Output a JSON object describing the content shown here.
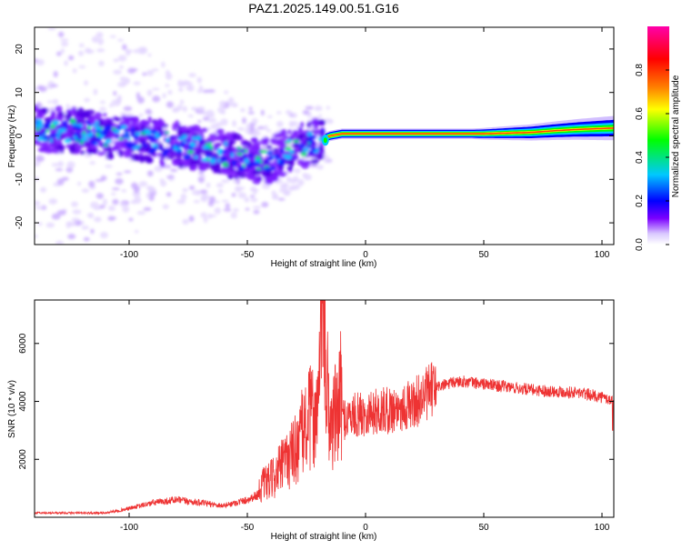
{
  "title": "PAZ1.2025.149.00.51.G16",
  "chart_data": [
    {
      "type": "heatmap",
      "xlabel": "Height of straight line (km)",
      "ylabel": "Frequency (Hz)",
      "xlim": [
        -140,
        105
      ],
      "ylim": [
        -25,
        25
      ],
      "xticks": [
        -100,
        -50,
        0,
        50,
        100
      ],
      "yticks": [
        -20,
        -10,
        0,
        10,
        20
      ],
      "ridge": {
        "x": [
          -138,
          -120,
          -100,
          -80,
          -60,
          -50,
          -40,
          -30,
          -20,
          -15,
          -10,
          0,
          10,
          30,
          50,
          70,
          80,
          90,
          105
        ],
        "y": [
          1.5,
          1.0,
          -0.5,
          -2.0,
          -4.0,
          -6.0,
          -5.5,
          -3.0,
          -1.0,
          0,
          0.5,
          0.5,
          0.5,
          0.5,
          0.5,
          0.8,
          1.2,
          1.5,
          1.8
        ]
      },
      "colorbar": {
        "label": "Normalized spectral amplitude",
        "ticks": [
          0.0,
          0.2,
          0.4,
          0.6,
          0.8
        ],
        "range": [
          0,
          1
        ],
        "colors": [
          "#ffffff",
          "#d9c8ff",
          "#7b00ff",
          "#0000ff",
          "#00c8ff",
          "#00ff00",
          "#ffff00",
          "#ff8000",
          "#ff0000",
          "#ff00aa"
        ]
      }
    },
    {
      "type": "line",
      "xlabel": "Height of straight line (km)",
      "ylabel": "SNR (10 * v/v)",
      "xlim": [
        -140,
        105
      ],
      "ylim": [
        0,
        7500
      ],
      "xticks": [
        -100,
        -50,
        0,
        50,
        100
      ],
      "yticks": [
        2000,
        4000,
        6000
      ],
      "color": "#ee3333",
      "envelope": {
        "x": [
          -140,
          -110,
          -100,
          -90,
          -80,
          -70,
          -60,
          -50,
          -40,
          -30,
          -25,
          -20,
          -18,
          -15,
          -12,
          -10,
          -5,
          0,
          10,
          20,
          30,
          40,
          50,
          60,
          70,
          80,
          90,
          100,
          105
        ],
        "y": [
          150,
          150,
          300,
          500,
          600,
          500,
          400,
          600,
          1000,
          1800,
          2500,
          3000,
          5000,
          2500,
          2800,
          3400,
          3500,
          3600,
          3700,
          3900,
          4500,
          4700,
          4600,
          4500,
          4400,
          4350,
          4300,
          4150,
          4000
        ]
      },
      "spikes": [
        {
          "x": -18.5,
          "y": 7500
        },
        {
          "x": -18.0,
          "y": 5200
        },
        {
          "x": -21.0,
          "y": 4300
        },
        {
          "x": 104.5,
          "y": 3000
        }
      ]
    }
  ]
}
